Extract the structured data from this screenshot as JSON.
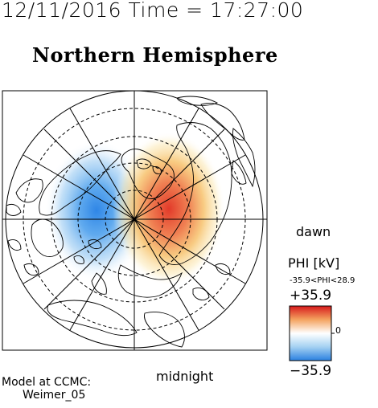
{
  "header": {
    "datetime": "12/11/2016 Time = 17:27:00",
    "title": "Northern Hemisphere"
  },
  "map": {
    "projection": "polar",
    "hemisphere": "north",
    "orientation_labels": {
      "right": "dawn",
      "bottom": "midnight"
    },
    "colors": {
      "negative": "#3b8fe8",
      "positive": "#e8402f",
      "coastline": "#000000",
      "grid": "#000000"
    }
  },
  "colorbar": {
    "label": "PHI [kV]",
    "range_text": "-35.9<PHI<28.9",
    "max_label": "+35.9",
    "min_label": "−35.9",
    "zero_label": "0",
    "stops": [
      "#d7191c",
      "#fdae61",
      "#ffffff",
      "#abd9e9",
      "#2c7bb6"
    ]
  },
  "footer": {
    "model_line1": "Model at CCMC:",
    "model_line2": "Weimer_05"
  }
}
